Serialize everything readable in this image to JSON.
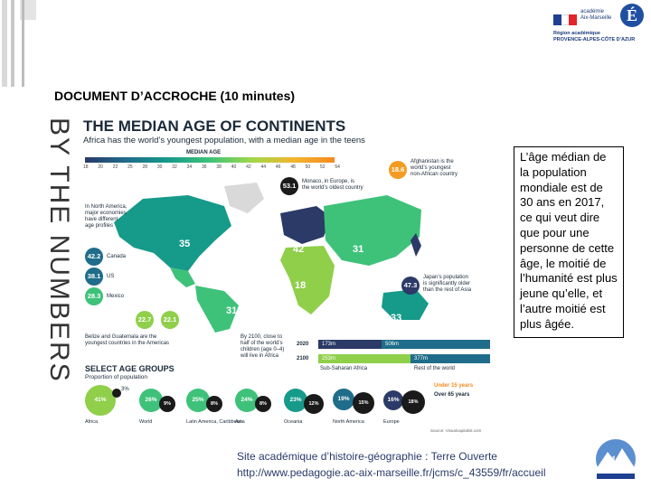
{
  "header": {
    "logo_lines": [
      "académie",
      "Aix-Marseille"
    ],
    "logo_letter": "É",
    "logo_region": [
      "Région académique",
      "PROVENCE-ALPES-CÔTE D'AZUR"
    ],
    "doc_title": "DOCUMENT D’ACCROCHE (10 minutes)"
  },
  "vertical_title": "BY THE NUMBERS",
  "infographic": {
    "title": "THE MEDIAN AGE OF CONTINENTS",
    "subtitle": "Africa has the world’s youngest population, with a median age in the teens",
    "median_label": "MEDIAN AGE",
    "scale_ticks": [
      "18",
      "20",
      "22",
      "25",
      "28",
      "30",
      "32",
      "34",
      "36",
      "38",
      "40",
      "42",
      "44",
      "46",
      "48",
      "50",
      "52",
      "54"
    ],
    "callouts": [
      {
        "value": "18.6",
        "text": [
          "Afghanistan is the",
          "world’s youngest",
          "non-African country"
        ],
        "color": "#f39c24"
      },
      {
        "value": "53.1",
        "text": [
          "Monaco, in Europe, is",
          "the world’s oldest country"
        ],
        "color": "#1b1b1b"
      },
      {
        "value": "42.2",
        "text": [
          "Canada"
        ],
        "color": "#1f6d8a"
      },
      {
        "value": "38.1",
        "text": [
          "US"
        ],
        "color": "#1f6d8a"
      },
      {
        "value": "28.3",
        "text": [
          "Mexico"
        ],
        "color": "#3ec27a"
      },
      {
        "value": "47.3",
        "text": [
          "Japan’s population",
          "is significantly older",
          "than the rest of Asia"
        ],
        "color": "#2b3a67"
      },
      {
        "value": "22.7",
        "text": [],
        "color": "#8fcf4a"
      },
      {
        "value": "22.1",
        "text": [],
        "color": "#8fcf4a"
      }
    ],
    "north_america_note": [
      "In North America,",
      "major economies",
      "have different",
      "age profiles"
    ],
    "belize_note": [
      "Belize and Guatemala are the",
      "youngest countries in the Americas"
    ],
    "map_numbers": [
      {
        "value": "35"
      },
      {
        "value": "42"
      },
      {
        "value": "31"
      },
      {
        "value": "18"
      },
      {
        "value": "31"
      },
      {
        "value": "33"
      }
    ],
    "projection_note": [
      "By 2100, close to",
      "half of the world’s",
      "children (age 0–4)",
      "will live in Africa"
    ],
    "population_rows": [
      {
        "year": "2020",
        "ssa": "173m",
        "rest": "506m"
      },
      {
        "year": "2100",
        "ssa": "253m",
        "rest": "377m"
      }
    ],
    "population_labels": [
      "Sub-Saharan Africa",
      "Rest of the world"
    ],
    "select_title": "SELECT AGE GROUPS",
    "select_subtitle": "Proportion of population",
    "legend_under15": "Under 15 years",
    "legend_over65": "Over 65 years",
    "groups": [
      {
        "name": "Africa",
        "under15": "41%",
        "over65": "3%",
        "color": "#8fcf4a"
      },
      {
        "name": "World",
        "under15": "26%",
        "over65": "9%",
        "color": "#3ec27a"
      },
      {
        "name": "Latin America, Caribbean",
        "under15": "25%",
        "over65": "8%",
        "color": "#3ec27a"
      },
      {
        "name": "Asia",
        "under15": "24%",
        "over65": "8%",
        "color": "#3ec27a"
      },
      {
        "name": "Oceania",
        "under15": "23%",
        "over65": "12%",
        "color": "#169a8a"
      },
      {
        "name": "North America",
        "under15": "19%",
        "over65": "15%",
        "color": "#1f6d8a"
      },
      {
        "name": "Europe",
        "under15": "16%",
        "over65": "18%",
        "color": "#2b3a67"
      }
    ],
    "source": "Source: Visualcapitalist.com"
  },
  "side_text": "L’âge médian de la population mondiale est de 30 ans en 2017, ce qui veut dire que pour une personne de cette âge, le moitié de l’humanité est plus jeune qu’elle, et l’autre moitié est plus âgée.",
  "footer": {
    "line1_prefix": "Site académique d’histoire-géographie : ",
    "line1_name": "Terre Ouverte",
    "line2": "http://www.pedagogie.ac-aix-marseille.fr/jcms/c_43559/fr/accueil"
  }
}
